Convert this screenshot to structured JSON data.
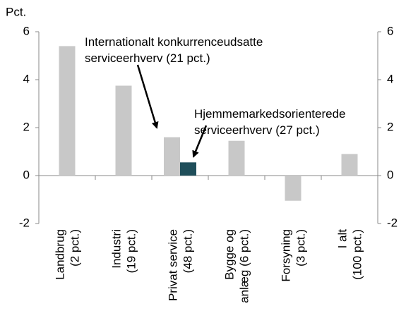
{
  "chart_data": {
    "type": "bar",
    "y_label": "Pct.",
    "categories": [
      [
        "Landbrug",
        "(2 pct.)"
      ],
      [
        "Industri",
        "(19 pct.)"
      ],
      [
        "Privat service",
        "(48 pct.)"
      ],
      [
        "Bygge og",
        "anlæg (6 pct.)"
      ],
      [
        "Forsyning",
        "(3 pct.)"
      ],
      [
        "I alt",
        "(100 pct.)"
      ]
    ],
    "series": [
      {
        "name": "Internationalt konkurrenceudsatte serviceerhverv (21 pct.)",
        "color": "#c8c8c8",
        "values": [
          5.4,
          3.75,
          1.6,
          1.45,
          -1.05,
          0.9
        ]
      },
      {
        "name": "Hjemmemarkedsorienterede serviceerhverv (27 pct.)",
        "color": "#1f4e5a",
        "values": [
          null,
          null,
          0.55,
          null,
          null,
          null
        ]
      }
    ],
    "ylim": [
      -2,
      6
    ],
    "yticks": [
      -2,
      0,
      2,
      4,
      6
    ],
    "y2lim": [
      -2,
      6
    ],
    "y2ticks": [
      -2,
      0,
      2,
      4,
      6
    ]
  }
}
